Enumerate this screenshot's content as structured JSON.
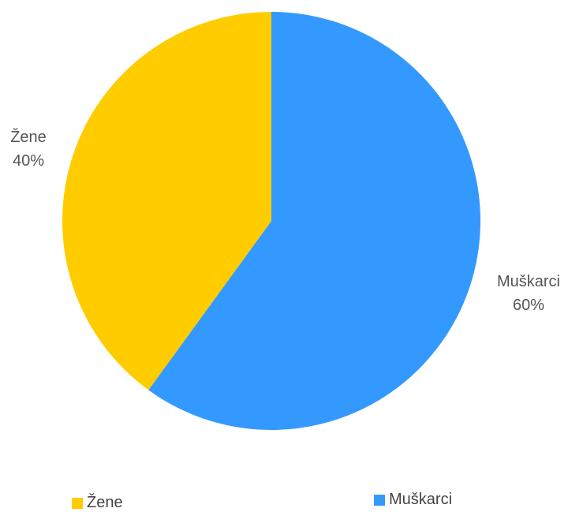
{
  "chart_data": {
    "type": "pie",
    "title": "",
    "slices": [
      {
        "label": "Žene",
        "value": 40,
        "display": "40%",
        "color": "#FFCC00"
      },
      {
        "label": "Muškarci",
        "value": 60,
        "display": "60%",
        "color": "#3399FF"
      }
    ],
    "legend_position": "bottom"
  },
  "legend": {
    "items": [
      {
        "label": "Žene",
        "color": "#FFCC00"
      },
      {
        "label": "Muškarci",
        "color": "#3399FF"
      }
    ]
  }
}
